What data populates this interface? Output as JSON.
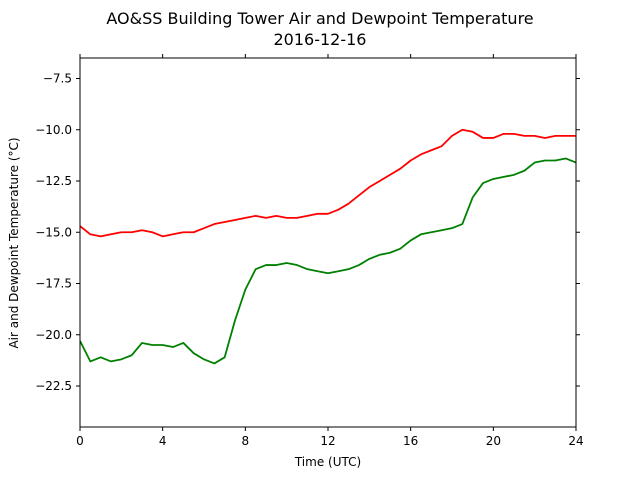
{
  "chart_data": {
    "type": "line",
    "title": "AO&SS Building Tower Air and Dewpoint Temperature",
    "subtitle": "2016-12-16",
    "xlabel": "Time (UTC)",
    "ylabel": "Air and Dewpoint Temperature (°C)",
    "xlim": [
      0,
      24
    ],
    "ylim": [
      -24.5,
      -6.5
    ],
    "xticks": [
      0,
      4,
      8,
      12,
      16,
      20,
      24
    ],
    "xtick_labels": [
      "0",
      "4",
      "8",
      "12",
      "16",
      "20",
      "24"
    ],
    "yticks": [
      -22.5,
      -20.0,
      -17.5,
      -15.0,
      -12.5,
      -10.0,
      -7.5
    ],
    "ytick_labels": [
      "−22.5",
      "−20.0",
      "−17.5",
      "−15.0",
      "−12.5",
      "−10.0",
      "−7.5"
    ],
    "grid": false,
    "series": [
      {
        "color": "#ff0000",
        "x": [
          0,
          0.5,
          1,
          1.5,
          2,
          2.5,
          3,
          3.5,
          4,
          4.5,
          5,
          5.5,
          6,
          6.5,
          7,
          7.5,
          8,
          8.5,
          9,
          9.5,
          10,
          10.5,
          11,
          11.5,
          12,
          12.5,
          13,
          13.5,
          14,
          14.5,
          15,
          15.5,
          16,
          16.5,
          17,
          17.5,
          18,
          18.5,
          19,
          19.5,
          20,
          20.5,
          21,
          21.5,
          22,
          22.5,
          23,
          23.5,
          24
        ],
        "y": [
          -14.7,
          -15.1,
          -15.2,
          -15.1,
          -15.0,
          -15.0,
          -14.9,
          -15.0,
          -15.2,
          -15.1,
          -15.0,
          -15.0,
          -14.8,
          -14.6,
          -14.5,
          -14.4,
          -14.3,
          -14.2,
          -14.3,
          -14.2,
          -14.3,
          -14.3,
          -14.2,
          -14.1,
          -14.1,
          -13.9,
          -13.6,
          -13.2,
          -12.8,
          -12.5,
          -12.2,
          -11.9,
          -11.5,
          -11.2,
          -11.0,
          -10.8,
          -10.3,
          -10.0,
          -10.1,
          -10.4,
          -10.4,
          -10.2,
          -10.2,
          -10.3,
          -10.3,
          -10.4,
          -10.3,
          -10.3,
          -10.3
        ]
      },
      {
        "color": "#008000",
        "x": [
          0,
          0.5,
          1,
          1.5,
          2,
          2.5,
          3,
          3.5,
          4,
          4.5,
          5,
          5.5,
          6,
          6.5,
          7,
          7.5,
          8,
          8.5,
          9,
          9.5,
          10,
          10.5,
          11,
          11.5,
          12,
          12.5,
          13,
          13.5,
          14,
          14.5,
          15,
          15.5,
          16,
          16.5,
          17,
          17.5,
          18,
          18.5,
          19,
          19.5,
          20,
          20.5,
          21,
          21.5,
          22,
          22.5,
          23,
          23.5,
          24
        ],
        "y": [
          -20.3,
          -21.3,
          -21.1,
          -21.3,
          -21.2,
          -21.0,
          -20.4,
          -20.5,
          -20.5,
          -20.6,
          -20.4,
          -20.9,
          -21.2,
          -21.4,
          -21.1,
          -19.3,
          -17.8,
          -16.8,
          -16.6,
          -16.6,
          -16.5,
          -16.6,
          -16.8,
          -16.9,
          -17.0,
          -16.9,
          -16.8,
          -16.6,
          -16.3,
          -16.1,
          -16.0,
          -15.8,
          -15.4,
          -15.1,
          -15.0,
          -14.9,
          -14.8,
          -14.6,
          -13.3,
          -12.6,
          -12.4,
          -12.3,
          -12.2,
          -12.0,
          -11.6,
          -11.5,
          -11.5,
          -11.4,
          -11.6
        ]
      }
    ]
  }
}
